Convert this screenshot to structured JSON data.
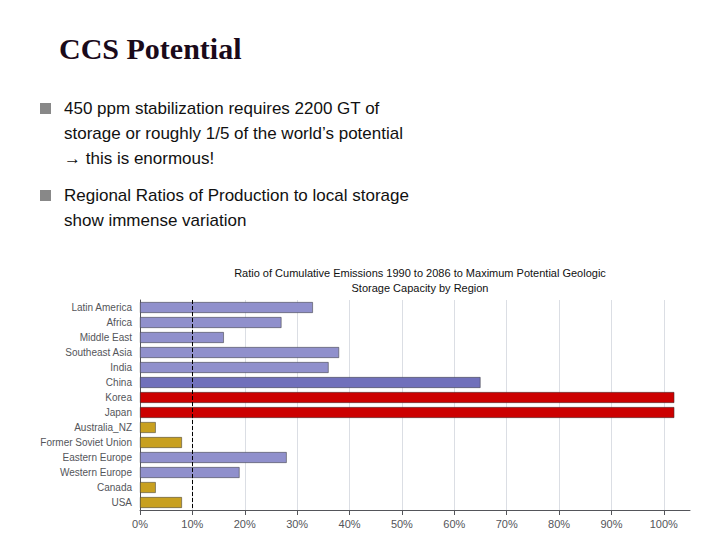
{
  "chart_data": {
    "type": "bar",
    "orientation": "horizontal",
    "title": "CCS Potential",
    "subtitle": "Ratio of Cumulative Emissions 1990 to 2086 to Maximum Potential Geologic\nStorage Capacity by Region",
    "annotations": [
      [
        "450 ppm stabilization requires 2200 GT of",
        "storage or roughly 1/5 of the world’s potential",
        "→ this is enormous!"
      ],
      [
        "Regional Ratios of Production to local storage",
        "show immense variation"
      ]
    ],
    "categories": [
      "Latin America",
      "Africa",
      "Middle East",
      "Southeast Asia",
      "India",
      "China",
      "Korea",
      "Japan",
      "Australia_NZ",
      "Former Soviet Union",
      "Eastern Europe",
      "Western Europe",
      "Canada",
      "USA"
    ],
    "values": [
      33,
      27,
      16,
      38,
      36,
      65,
      102,
      102,
      3,
      8,
      28,
      19,
      3,
      8
    ],
    "colors": [
      "#9090cc",
      "#9090cc",
      "#9090cc",
      "#9090cc",
      "#9090cc",
      "#7070bb",
      "#cc0000",
      "#cc0000",
      "#c8a020",
      "#c8a020",
      "#9090cc",
      "#9090cc",
      "#c8a020",
      "#c8a020"
    ],
    "xlim": [
      0,
      105
    ],
    "xticks": [
      {
        "value": 0,
        "label": "0%"
      },
      {
        "value": 10,
        "label": "10%"
      },
      {
        "value": 20,
        "label": "20%"
      },
      {
        "value": 30,
        "label": "30%"
      },
      {
        "value": 40,
        "label": "40%"
      },
      {
        "value": 50,
        "label": "50%"
      },
      {
        "value": 60,
        "label": "60%"
      },
      {
        "value": 70,
        "label": "70%"
      },
      {
        "value": 80,
        "label": "80%"
      },
      {
        "value": 90,
        "label": "90%"
      },
      {
        "value": 100,
        "label": "100%"
      }
    ],
    "reference_lines": [
      10
    ],
    "grid": true
  }
}
